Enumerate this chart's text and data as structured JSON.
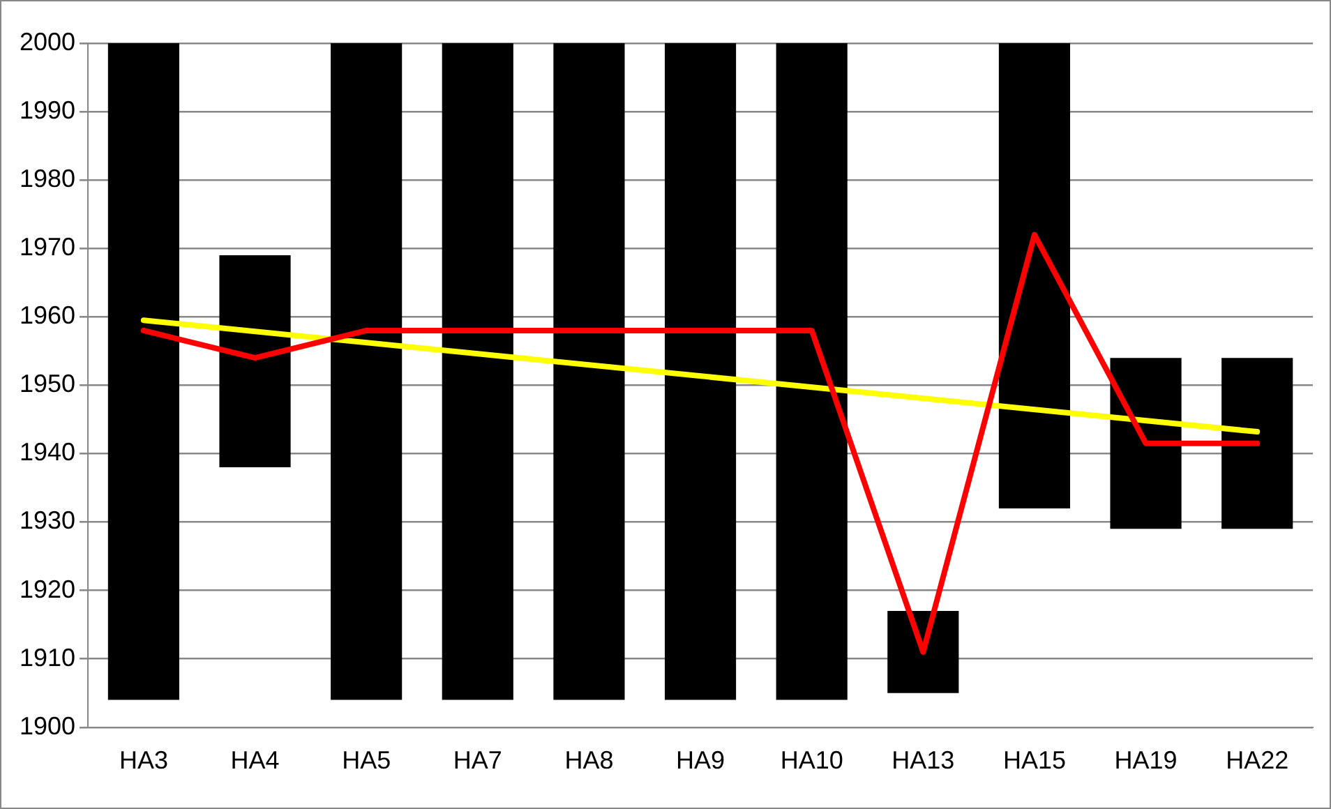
{
  "chart_data": {
    "type": "bar",
    "categories": [
      "HA3",
      "HA4",
      "HA5",
      "HA7",
      "HA8",
      "HA9",
      "HA10",
      "HA13",
      "HA15",
      "HA19",
      "HA22"
    ],
    "series": [
      {
        "color": "#000000",
        "base": [
          1904,
          1938,
          1904,
          1904,
          1904,
          1904,
          1904,
          1905,
          1932,
          1929,
          1929
        ],
        "values": [
          96,
          31,
          96,
          96,
          96,
          96,
          96,
          12,
          68,
          25,
          25
        ]
      },
      {
        "type": "line",
        "color": "#ff0000",
        "values": [
          1958,
          1954,
          1958,
          1958,
          1958,
          1958,
          1958,
          1911,
          1972,
          1941.5,
          1941.5
        ]
      },
      {
        "type": "line",
        "color": "#ffff00",
        "x": [
          "HA3",
          "HA22"
        ],
        "values": [
          1959.5,
          1943.2
        ]
      }
    ],
    "ylim": [
      1900,
      2000
    ],
    "yticks": [
      1900,
      1910,
      1920,
      1930,
      1940,
      1950,
      1960,
      1970,
      1980,
      1990,
      2000
    ],
    "grid": "y",
    "legend": false,
    "marker": "none",
    "line_style": "solid"
  }
}
